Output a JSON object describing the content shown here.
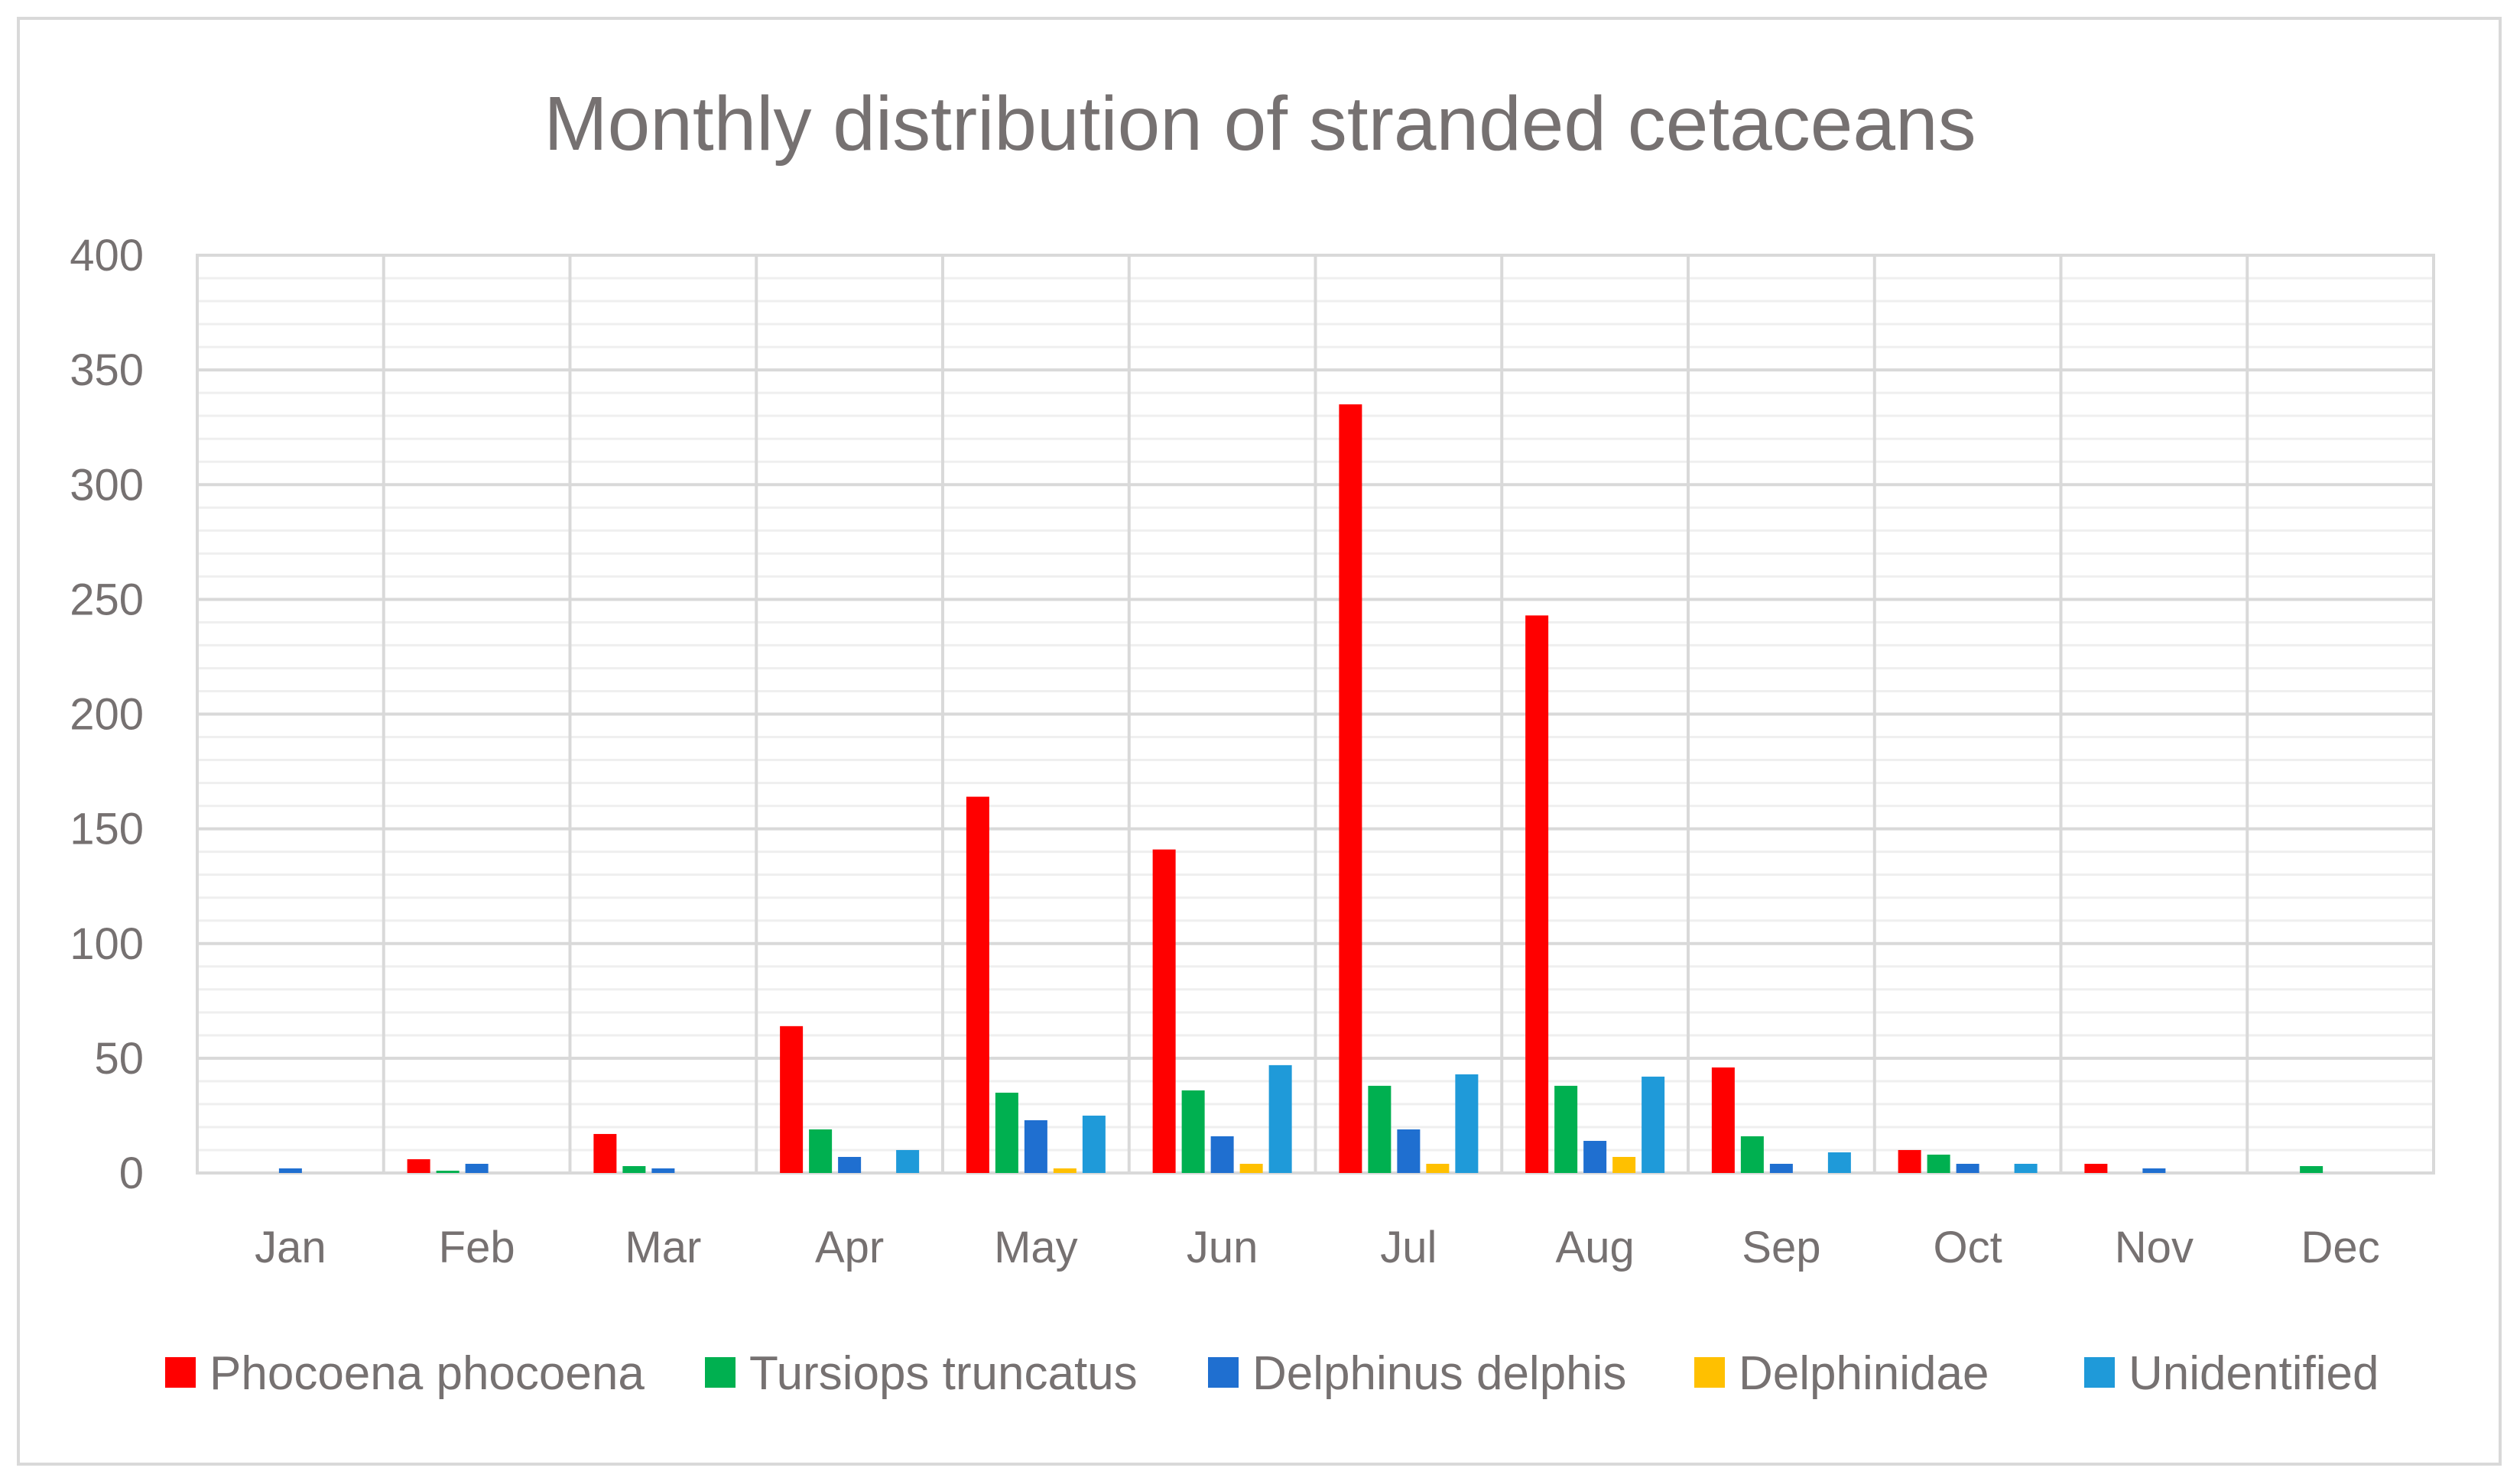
{
  "chart_data": {
    "type": "bar",
    "title": "Monthly distribution of stranded cetaceans",
    "xlabel": "",
    "ylabel": "",
    "ylim": [
      0,
      400
    ],
    "yticks": [
      "0",
      "50",
      "100",
      "150",
      "200",
      "250",
      "300",
      "350",
      "400"
    ],
    "categories": [
      "Jan",
      "Feb",
      "Mar",
      "Apr",
      "May",
      "Jun",
      "Jul",
      "Aug",
      "Sep",
      "Oct",
      "Nov",
      "Dec"
    ],
    "grid": true,
    "legend_position": "bottom",
    "series": [
      {
        "name": "Phocoena phocoena",
        "color": "#ff0000",
        "values": [
          0,
          6,
          17,
          64,
          164,
          141,
          335,
          243,
          46,
          10,
          4,
          0
        ]
      },
      {
        "name": "Tursiops truncatus",
        "color": "#00b050",
        "values": [
          0,
          1,
          3,
          19,
          35,
          36,
          38,
          38,
          16,
          8,
          0,
          3
        ]
      },
      {
        "name": "Delphinus delphis",
        "color": "#1f6fd0",
        "values": [
          2,
          4,
          2,
          7,
          23,
          16,
          19,
          14,
          4,
          4,
          2,
          0
        ]
      },
      {
        "name": "Delphinidae",
        "color": "#ffc000",
        "values": [
          0,
          0,
          0,
          0,
          2,
          4,
          4,
          7,
          0,
          0,
          0,
          0
        ]
      },
      {
        "name": "Unidentified",
        "color": "#1f9ad9",
        "values": [
          0,
          0,
          0,
          10,
          25,
          47,
          43,
          42,
          9,
          4,
          0,
          0
        ]
      }
    ]
  }
}
